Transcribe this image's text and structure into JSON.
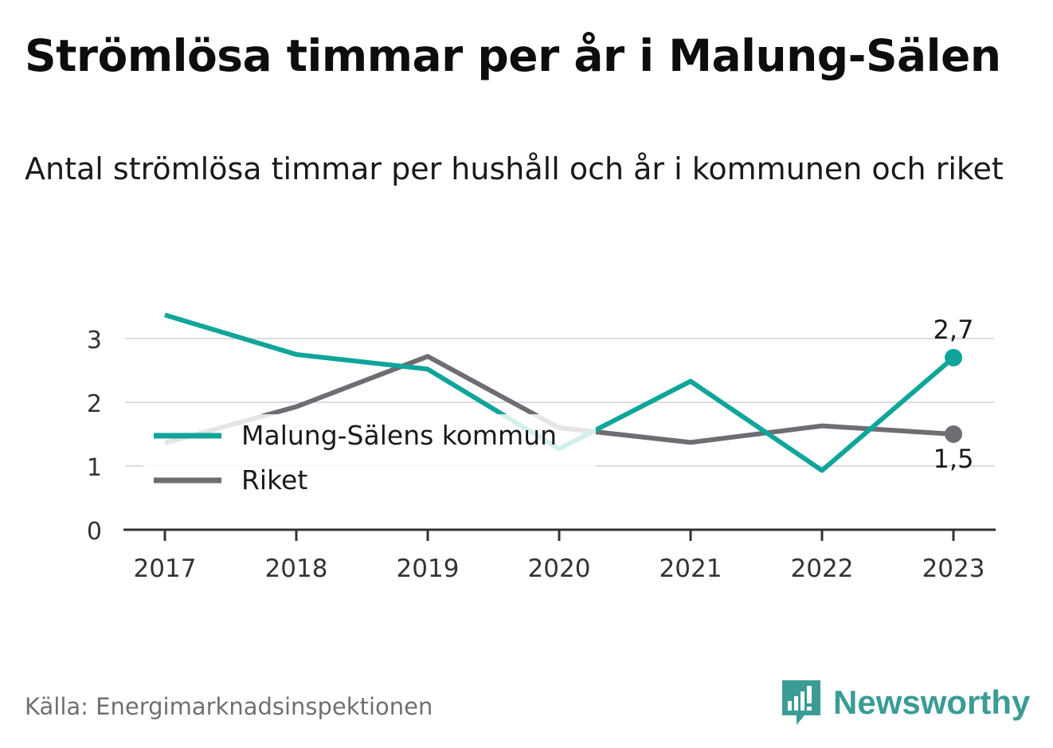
{
  "title": "Strömlösa timmar per år i Malung-Sälen",
  "subtitle": "Antal strömlösa timmar per hushåll och år i kommunen och riket",
  "source": "Källa: Energimarknadsinspektionen",
  "brand": {
    "name": "Newsworthy",
    "icon": "newsworthy-logo-icon",
    "color": "#3a9c94"
  },
  "chart_data": {
    "type": "line",
    "x": [
      "2017",
      "2018",
      "2019",
      "2020",
      "2021",
      "2022",
      "2023"
    ],
    "yticks": [
      "0",
      "1",
      "2",
      "3"
    ],
    "ylim": [
      0,
      3.5
    ],
    "grid": true,
    "legend_position": "left-middle",
    "series": [
      {
        "name": "Malung-Sälens kommun",
        "color": "#0fa59a",
        "values": [
          3.37,
          2.75,
          2.52,
          1.27,
          2.33,
          0.93,
          2.7
        ]
      },
      {
        "name": "Riket",
        "color": "#6e6d73",
        "values": [
          1.36,
          1.93,
          2.72,
          1.6,
          1.37,
          1.63,
          1.5
        ]
      }
    ],
    "annotations": [
      "2,7",
      "1,5"
    ]
  }
}
